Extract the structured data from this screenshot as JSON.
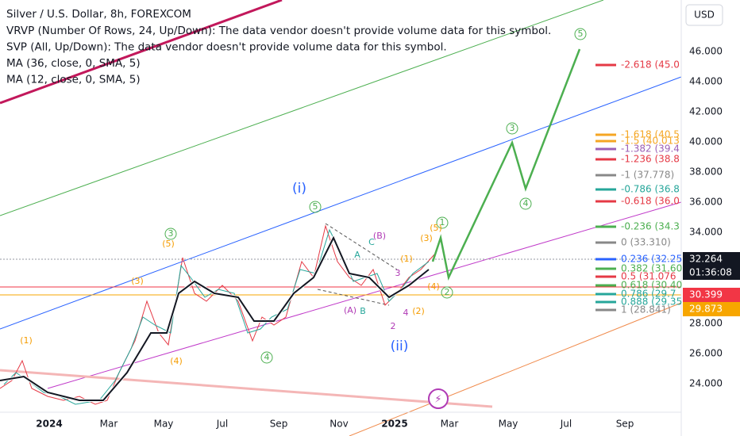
{
  "header": {
    "title": "Silver / U.S. Dollar, 8h, FOREXCOM",
    "indicators": [
      "VRVP (Number Of Rows, 24, Up/Down): The data vendor doesn't provide volume data for this symbol.",
      "SVP (All, Up/Down): The data vendor doesn't provide volume data for this symbol.",
      "MA (36, close, 0, SMA, 5)",
      "MA (12, close, 0, SMA, 5)"
    ]
  },
  "currency": "USD",
  "price_axis": {
    "labels": [
      "46.000",
      "44.000",
      "42.000",
      "40.000",
      "38.000",
      "36.000",
      "34.000",
      "28.000",
      "26.000",
      "24.000"
    ]
  },
  "time_axis": {
    "labels": [
      "2024",
      "Mar",
      "May",
      "Jul",
      "Sep",
      "Nov",
      "2025",
      "Mar",
      "May",
      "Jul",
      "Sep"
    ]
  },
  "fib_levels": [
    {
      "label": "-2.618 (45.0",
      "color": "#e53945"
    },
    {
      "label": "-1.618 (40.5",
      "color": "#f5a623"
    },
    {
      "label": "-1.5 (40.013",
      "color": "#f5a623"
    },
    {
      "label": "-1.382 (39.4",
      "color": "#9c5fb5"
    },
    {
      "label": "-1.236 (38.8",
      "color": "#e53945"
    },
    {
      "label": "-1 (37.778)",
      "color": "#888888"
    },
    {
      "label": "-0.786 (36.8",
      "color": "#26a69a"
    },
    {
      "label": "-0.618 (36.0",
      "color": "#e53945"
    },
    {
      "label": "-0.236 (34.3",
      "color": "#4caf50"
    },
    {
      "label": "0 (33.310)",
      "color": "#888888"
    },
    {
      "label": "0.236 (32.25",
      "color": "#2962ff"
    },
    {
      "label": "0.382 (31.60",
      "color": "#4caf50"
    },
    {
      "label": "0.5 (31.076",
      "color": "#e53945"
    },
    {
      "label": "0.618 (30.40",
      "color": "#4caf50"
    },
    {
      "label": "0.786 (29.7",
      "color": "#26a69a"
    },
    {
      "label": "0.888 (29.35",
      "color": "#26a69a"
    },
    {
      "label": "1 (28.841)",
      "color": "#888888"
    }
  ],
  "price_tags": [
    {
      "label": "32.264",
      "sub": "01:36:08",
      "color": "#131722"
    },
    {
      "label": "30.399",
      "color": "#f23645"
    },
    {
      "label": "29.873",
      "color": "#f7a600"
    }
  ],
  "wave_labels": [
    {
      "text": "(i)",
      "color": "#2962ff"
    },
    {
      "text": "(ii)",
      "color": "#2962ff"
    },
    {
      "text": "5",
      "color": "#4caf50"
    },
    {
      "text": "3",
      "color": "#4caf50"
    },
    {
      "text": "4",
      "color": "#4caf50"
    },
    {
      "text": "3",
      "color": "#4caf50"
    },
    {
      "text": "4",
      "color": "#4caf50"
    },
    {
      "text": "5",
      "color": "#4caf50"
    },
    {
      "text": "1",
      "color": "#4caf50"
    },
    {
      "text": "2",
      "color": "#4caf50"
    },
    {
      "text": "(5)",
      "color": "#f59c00"
    },
    {
      "text": "(3)",
      "color": "#f59c00"
    },
    {
      "text": "(1)",
      "color": "#f59c00"
    },
    {
      "text": "(4)",
      "color": "#f59c00"
    },
    {
      "text": "(1)",
      "color": "#f59c00"
    },
    {
      "text": "(3)",
      "color": "#f59c00"
    },
    {
      "text": "(5)",
      "color": "#f59c00"
    },
    {
      "text": "(4)",
      "color": "#f59c00"
    },
    {
      "text": "(2)",
      "color": "#f59c00"
    },
    {
      "text": "(A)",
      "color": "#b03ab5"
    },
    {
      "text": "B",
      "color": "#26a69a"
    },
    {
      "text": "A",
      "color": "#26a69a"
    },
    {
      "text": "C",
      "color": "#26a69a"
    },
    {
      "text": "(B)",
      "color": "#b03ab5"
    },
    {
      "text": "3",
      "color": "#b03ab5"
    },
    {
      "text": "4",
      "color": "#b03ab5"
    },
    {
      "text": "2",
      "color": "#b03ab5"
    }
  ]
}
